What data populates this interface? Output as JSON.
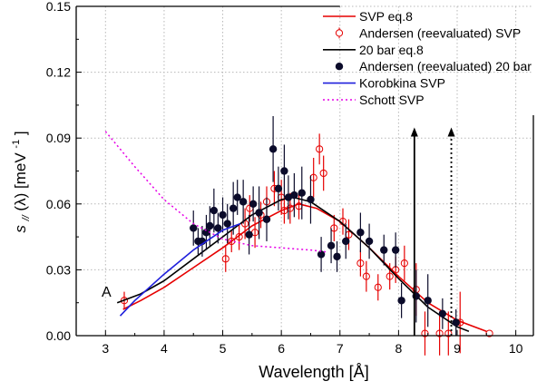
{
  "chart_data": {
    "type": "scatter",
    "xlabel": "Wavelength [Å]",
    "ylabel_base": "s",
    "ylabel_sub": "//",
    "ylabel_rest": "(λ) [meV",
    "ylabel_sup": "-1",
    "ylabel_end": "]",
    "xlim": [
      2.5,
      10.3
    ],
    "ylim": [
      0,
      0.15
    ],
    "xticks": [
      "3",
      "4",
      "5",
      "6",
      "7",
      "8",
      "9",
      "10"
    ],
    "yticks": [
      "0.00",
      "0.03",
      "0.06",
      "0.09",
      "0.12",
      "0.15"
    ],
    "grid": true,
    "legend_position": "top-right",
    "annotation": "A",
    "series": [
      {
        "name": "SVP eq.8",
        "kind": "line",
        "color": "#e60000",
        "points": [
          [
            3.3,
            0.012
          ],
          [
            3.6,
            0.016
          ],
          [
            4.0,
            0.022
          ],
          [
            4.5,
            0.031
          ],
          [
            5.0,
            0.04
          ],
          [
            5.5,
            0.05
          ],
          [
            6.0,
            0.057
          ],
          [
            6.3,
            0.06
          ],
          [
            6.6,
            0.058
          ],
          [
            7.0,
            0.052
          ],
          [
            7.5,
            0.04
          ],
          [
            8.0,
            0.027
          ],
          [
            8.5,
            0.015
          ],
          [
            9.0,
            0.007
          ],
          [
            9.5,
            0.002
          ]
        ]
      },
      {
        "name": "Andersen (reevaluated) SVP",
        "kind": "points-open",
        "color": "#e60000",
        "points": [
          [
            3.32,
            0.016,
            0.004
          ],
          [
            5.05,
            0.035,
            0.006
          ],
          [
            5.15,
            0.043,
            0.005
          ],
          [
            5.28,
            0.045,
            0.006
          ],
          [
            5.38,
            0.051,
            0.007
          ],
          [
            5.46,
            0.058,
            0.006
          ],
          [
            5.55,
            0.047,
            0.007
          ],
          [
            5.65,
            0.055,
            0.006
          ],
          [
            5.75,
            0.061,
            0.007
          ],
          [
            5.88,
            0.067,
            0.008
          ],
          [
            6.0,
            0.063,
            0.008
          ],
          [
            6.05,
            0.057,
            0.006
          ],
          [
            6.15,
            0.058,
            0.007
          ],
          [
            6.3,
            0.059,
            0.006
          ],
          [
            6.55,
            0.072,
            0.009
          ],
          [
            6.65,
            0.085,
            0.007
          ],
          [
            6.72,
            0.074,
            0.008
          ],
          [
            6.9,
            0.049,
            0.006
          ],
          [
            7.05,
            0.052,
            0.006
          ],
          [
            7.15,
            0.046,
            0.007
          ],
          [
            7.35,
            0.033,
            0.006
          ],
          [
            7.45,
            0.027,
            0.007
          ],
          [
            7.65,
            0.022,
            0.006
          ],
          [
            7.85,
            0.027,
            0.006
          ],
          [
            7.95,
            0.03,
            0.006
          ],
          [
            8.1,
            0.033,
            0.008
          ],
          [
            8.3,
            0.021,
            0.012
          ],
          [
            8.45,
            0.001,
            0.01
          ],
          [
            8.7,
            0.001,
            0.01
          ],
          [
            8.85,
            0.001,
            0.01
          ],
          [
            9.05,
            0.006,
            0.014
          ],
          [
            9.55,
            0.001,
            0.0
          ]
        ]
      },
      {
        "name": "20 bar eq.8",
        "kind": "line",
        "color": "#000000",
        "points": [
          [
            3.2,
            0.015
          ],
          [
            3.6,
            0.019
          ],
          [
            4.0,
            0.025
          ],
          [
            4.5,
            0.035
          ],
          [
            5.0,
            0.045
          ],
          [
            5.5,
            0.055
          ],
          [
            6.0,
            0.062
          ],
          [
            6.2,
            0.063
          ],
          [
            6.5,
            0.061
          ],
          [
            7.0,
            0.052
          ],
          [
            7.5,
            0.04
          ],
          [
            8.0,
            0.026
          ],
          [
            8.5,
            0.013
          ],
          [
            9.0,
            0.004
          ],
          [
            9.2,
            0.002
          ]
        ]
      },
      {
        "name": "Andersen (reevaluated) 20 bar",
        "kind": "points-filled",
        "color": "#0b0b2a",
        "points": [
          [
            4.5,
            0.049,
            0.008
          ],
          [
            4.58,
            0.043,
            0.006
          ],
          [
            4.65,
            0.043,
            0.007
          ],
          [
            4.72,
            0.047,
            0.008
          ],
          [
            4.78,
            0.05,
            0.009
          ],
          [
            4.85,
            0.057,
            0.01
          ],
          [
            4.92,
            0.049,
            0.007
          ],
          [
            5.0,
            0.055,
            0.008
          ],
          [
            5.08,
            0.051,
            0.009
          ],
          [
            5.18,
            0.058,
            0.012
          ],
          [
            5.25,
            0.063,
            0.008
          ],
          [
            5.35,
            0.061,
            0.01
          ],
          [
            5.45,
            0.046,
            0.009
          ],
          [
            5.52,
            0.06,
            0.008
          ],
          [
            5.62,
            0.056,
            0.012
          ],
          [
            5.75,
            0.053,
            0.01
          ],
          [
            5.86,
            0.085,
            0.015
          ],
          [
            5.95,
            0.067,
            0.01
          ],
          [
            6.05,
            0.075,
            0.012
          ],
          [
            6.12,
            0.063,
            0.01
          ],
          [
            6.22,
            0.064,
            0.01
          ],
          [
            6.35,
            0.065,
            0.012
          ],
          [
            6.5,
            0.062,
            0.011
          ],
          [
            6.68,
            0.037,
            0.008
          ],
          [
            6.85,
            0.041,
            0.008
          ],
          [
            6.95,
            0.036,
            0.007
          ],
          [
            7.1,
            0.043,
            0.008
          ],
          [
            7.35,
            0.047,
            0.009
          ],
          [
            7.5,
            0.043,
            0.008
          ],
          [
            7.75,
            0.039,
            0.007
          ],
          [
            7.95,
            0.039,
            0.008
          ],
          [
            8.05,
            0.016,
            0.008
          ],
          [
            8.3,
            0.018,
            0.012
          ],
          [
            8.5,
            0.016,
            0.012
          ],
          [
            8.75,
            0.01,
            0.007
          ],
          [
            8.98,
            0.006,
            0.006
          ]
        ]
      },
      {
        "name": "Korobkina SVP",
        "kind": "line",
        "color": "#1f1fdc",
        "points": [
          [
            3.25,
            0.009
          ],
          [
            3.5,
            0.016
          ],
          [
            4.0,
            0.028
          ],
          [
            4.5,
            0.039
          ],
          [
            5.0,
            0.048
          ],
          [
            5.3,
            0.051
          ]
        ]
      },
      {
        "name": "Schott SVP",
        "kind": "dotted",
        "color": "#e600e6",
        "points": [
          [
            3.0,
            0.093
          ],
          [
            3.5,
            0.077
          ],
          [
            4.0,
            0.062
          ],
          [
            4.5,
            0.051
          ],
          [
            5.0,
            0.044
          ],
          [
            5.5,
            0.041
          ],
          [
            6.0,
            0.04
          ],
          [
            6.5,
            0.039
          ],
          [
            6.8,
            0.038
          ]
        ]
      }
    ],
    "arrows": [
      {
        "x": 8.27,
        "style": "solid",
        "from": 0,
        "to": 0.094
      },
      {
        "x": 8.9,
        "style": "dotted",
        "from": 0,
        "to": 0.094
      }
    ]
  }
}
